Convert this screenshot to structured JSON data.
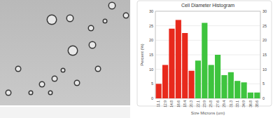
{
  "chart_data": {
    "type": "bar",
    "title": "Cell Diameter Histogram",
    "x_label": "Size Microns (um)",
    "y_label": "Percent (%)",
    "categories": [
      "11.1",
      "12.9",
      "14.8",
      "16.6",
      "18.4",
      "20.3",
      "22.1",
      "23.9",
      "25.8",
      "27.6",
      "29.4",
      "31.3",
      "33.1",
      "34.9",
      "36.8",
      "38.6"
    ],
    "values": [
      5,
      11.5,
      24,
      27,
      22.5,
      9.5,
      13,
      26,
      11.5,
      15,
      8,
      9,
      6,
      5.5,
      2,
      2
    ],
    "colors": [
      "#e8291c",
      "#e8291c",
      "#e8291c",
      "#e8291c",
      "#e8291c",
      "#e8291c",
      "#3ec43e",
      "#3ec43e",
      "#3ec43e",
      "#3ec43e",
      "#3ec43e",
      "#3ec43e",
      "#3ec43e",
      "#3ec43e",
      "#3ec43e",
      "#3ec43e"
    ],
    "ylim": [
      0,
      30
    ],
    "yticks": [
      0,
      5,
      10,
      15,
      20,
      25,
      30
    ],
    "grid": true
  }
}
